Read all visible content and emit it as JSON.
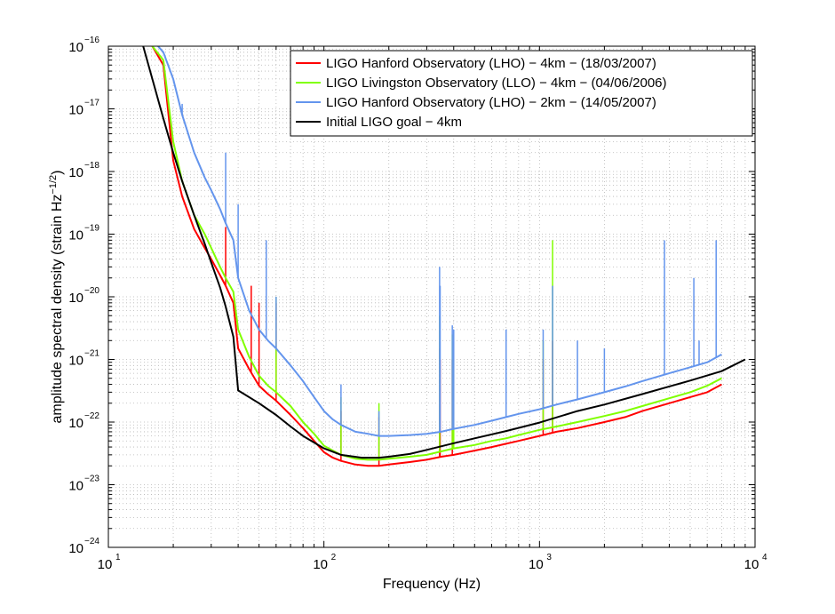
{
  "chart_data": {
    "type": "line",
    "title": "",
    "xlabel": "Frequency (Hz)",
    "ylabel": "amplitude spectral density (strain Hz",
    "ylabel_exp": "−1/2",
    "ylabel_end": ")",
    "xscale": "log",
    "yscale": "log",
    "xlim": [
      10,
      10000
    ],
    "ylim": [
      1e-24,
      1e-16
    ],
    "grid": true,
    "legend_position": "top-right",
    "x_ticks": [
      {
        "base": "10",
        "exp": "1",
        "value": 10
      },
      {
        "base": "10",
        "exp": "2",
        "value": 100
      },
      {
        "base": "10",
        "exp": "3",
        "value": 1000
      },
      {
        "base": "10",
        "exp": "4",
        "value": 10000
      }
    ],
    "y_ticks": [
      {
        "base": "10",
        "exp": "−16",
        "value": 1e-16
      },
      {
        "base": "10",
        "exp": "−17",
        "value": 1e-17
      },
      {
        "base": "10",
        "exp": "−18",
        "value": 1e-18
      },
      {
        "base": "10",
        "exp": "−19",
        "value": 1e-19
      },
      {
        "base": "10",
        "exp": "−20",
        "value": 1e-20
      },
      {
        "base": "10",
        "exp": "−21",
        "value": 1e-21
      },
      {
        "base": "10",
        "exp": "−22",
        "value": 1e-22
      },
      {
        "base": "10",
        "exp": "−23",
        "value": 1e-23
      },
      {
        "base": "10",
        "exp": "−24",
        "value": 1e-24
      }
    ],
    "series": [
      {
        "name": "LIGO Hanford Observatory (LHO) − 4km − (18/03/2007)",
        "color": "#ff0000",
        "width": 2,
        "x": [
          16,
          18,
          20,
          22,
          25,
          28,
          30,
          33,
          35,
          38,
          40,
          45,
          50,
          55,
          60,
          70,
          80,
          90,
          100,
          110,
          120,
          140,
          160,
          180,
          200,
          250,
          300,
          350,
          400,
          500,
          600,
          700,
          800,
          1000,
          1200,
          1500,
          2000,
          2500,
          3000,
          4000,
          5000,
          6000,
          7000
        ],
        "y": [
          1e-16,
          5e-17,
          1.5e-18,
          4e-19,
          1.2e-19,
          6e-20,
          4e-20,
          2.2e-20,
          1.5e-20,
          8e-21,
          1.5e-21,
          7e-22,
          3.8e-22,
          2.8e-22,
          2.2e-22,
          1.3e-22,
          8e-23,
          5e-23,
          3.3e-23,
          2.7e-23,
          2.4e-23,
          2.1e-23,
          2e-23,
          2e-23,
          2.1e-23,
          2.3e-23,
          2.5e-23,
          2.8e-23,
          3e-23,
          3.5e-23,
          4e-23,
          4.5e-23,
          5e-23,
          6e-23,
          7e-23,
          8e-23,
          1e-22,
          1.2e-22,
          1.5e-22,
          2e-22,
          2.5e-22,
          3e-22,
          4e-22
        ],
        "spikes": [
          [
            35,
            1.3e-19
          ],
          [
            46,
            1.5e-20
          ],
          [
            50,
            8e-21
          ],
          [
            60,
            8e-21
          ],
          [
            120,
            1.5e-22
          ],
          [
            180,
            1.2e-22
          ],
          [
            344,
            1.5e-21
          ],
          [
            346,
            1e-21
          ],
          [
            394,
            1e-21
          ],
          [
            1040,
            1e-21
          ],
          [
            1150,
            2e-21
          ]
        ]
      },
      {
        "name": "LIGO Livingston Observatory (LLO) − 4km − (04/06/2006)",
        "color": "#80ff00",
        "width": 2,
        "x": [
          16,
          18,
          20,
          22,
          25,
          28,
          30,
          33,
          35,
          38,
          40,
          45,
          50,
          55,
          60,
          70,
          80,
          90,
          100,
          110,
          120,
          140,
          160,
          180,
          200,
          250,
          300,
          350,
          400,
          500,
          600,
          700,
          800,
          1000,
          1200,
          1500,
          2000,
          2500,
          3000,
          4000,
          5000,
          6000,
          7000
        ],
        "y": [
          1e-16,
          6e-17,
          3e-18,
          7e-19,
          2e-19,
          1e-19,
          6e-20,
          3e-20,
          2e-20,
          1.2e-20,
          3e-21,
          1.1e-21,
          5.5e-22,
          3.8e-22,
          3e-22,
          1.8e-22,
          1e-22,
          6.5e-23,
          4.2e-23,
          3.5e-23,
          3e-23,
          2.6e-23,
          2.5e-23,
          2.5e-23,
          2.6e-23,
          2.8e-23,
          3e-23,
          3.4e-23,
          3.8e-23,
          4.3e-23,
          5e-23,
          5.5e-23,
          6.2e-23,
          7.5e-23,
          8.5e-23,
          1e-22,
          1.25e-22,
          1.5e-22,
          1.8e-22,
          2.4e-22,
          3e-22,
          3.8e-22,
          5e-22
        ],
        "spikes": [
          [
            60,
            1e-20
          ],
          [
            120,
            2.5e-22
          ],
          [
            180,
            2e-22
          ],
          [
            344,
            5e-21
          ],
          [
            394,
            2.5e-21
          ],
          [
            400,
            1e-21
          ],
          [
            1150,
            8e-20
          ],
          [
            1040,
            2e-21
          ]
        ]
      },
      {
        "name": "LIGO Hanford Observatory (LHO) − 2km − (14/05/2007)",
        "color": "#6495ed",
        "width": 2,
        "x": [
          17,
          18,
          20,
          22,
          25,
          28,
          30,
          33,
          35,
          38,
          40,
          45,
          50,
          55,
          60,
          70,
          80,
          90,
          100,
          110,
          120,
          140,
          160,
          180,
          200,
          250,
          300,
          350,
          400,
          500,
          600,
          700,
          800,
          1000,
          1200,
          1500,
          2000,
          2500,
          3000,
          4000,
          5000,
          6000,
          7000
        ],
        "y": [
          1e-16,
          8e-17,
          3e-17,
          8e-18,
          2e-18,
          8e-19,
          5e-19,
          2.5e-19,
          1.5e-19,
          8e-20,
          2e-20,
          6e-21,
          3e-21,
          2e-21,
          1.5e-21,
          8e-22,
          4.5e-22,
          2.5e-22,
          1.5e-22,
          1.1e-22,
          9e-23,
          7e-23,
          6.5e-23,
          6e-23,
          6e-23,
          6.2e-23,
          6.5e-23,
          7e-23,
          7.8e-23,
          9e-23,
          1.05e-22,
          1.2e-22,
          1.35e-22,
          1.6e-22,
          1.9e-22,
          2.3e-22,
          3e-22,
          3.7e-22,
          4.5e-22,
          6e-22,
          7.5e-22,
          9e-22,
          1.2e-21
        ],
        "spikes": [
          [
            22,
            1.2e-17
          ],
          [
            35,
            2e-18
          ],
          [
            40,
            3e-19
          ],
          [
            54,
            8e-20
          ],
          [
            60,
            1e-20
          ],
          [
            120,
            4e-22
          ],
          [
            180,
            1.5e-22
          ],
          [
            344,
            3e-20
          ],
          [
            346,
            1.5e-20
          ],
          [
            394,
            3.5e-21
          ],
          [
            400,
            3e-21
          ],
          [
            700,
            3e-21
          ],
          [
            1150,
            1.5e-20
          ],
          [
            1040,
            3e-21
          ],
          [
            1500,
            2e-21
          ],
          [
            2000,
            1.5e-21
          ],
          [
            3800,
            8e-20
          ],
          [
            5200,
            2e-20
          ],
          [
            5500,
            2e-21
          ],
          [
            6600,
            8e-20
          ]
        ]
      },
      {
        "name": "Initial LIGO goal − 4km",
        "color": "#000000",
        "width": 2,
        "x": [
          14.5,
          16,
          18,
          20,
          22,
          25,
          28,
          30,
          33,
          35,
          38,
          40,
          50,
          60,
          70,
          80,
          100,
          120,
          150,
          180,
          200,
          250,
          300,
          400,
          500,
          700,
          1000,
          1500,
          2000,
          3000,
          5000,
          7000,
          9000
        ],
        "y": [
          1e-16,
          3e-17,
          7e-18,
          2e-18,
          7e-19,
          2e-19,
          7e-20,
          3.5e-20,
          1.4e-20,
          7e-21,
          2.3e-21,
          3.2e-22,
          2e-22,
          1.3e-22,
          8.5e-23,
          6e-23,
          3.8e-23,
          3e-23,
          2.7e-23,
          2.7e-23,
          2.8e-23,
          3.1e-23,
          3.6e-23,
          4.6e-23,
          5.5e-23,
          7.2e-23,
          9.8e-23,
          1.5e-22,
          1.9e-22,
          2.8e-22,
          4.6e-22,
          6.5e-22,
          1e-21
        ]
      }
    ]
  }
}
